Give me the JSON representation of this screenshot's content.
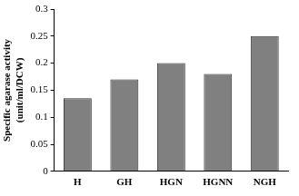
{
  "chart_data": {
    "type": "bar",
    "y_label": [
      "Specific agarase activity",
      "(unit/ml/DCW)"
    ],
    "categories": [
      "H",
      "GH",
      "HGN",
      "HGNN",
      "NGH"
    ],
    "values": [
      0.135,
      0.17,
      0.2,
      0.18,
      0.25
    ],
    "color": "#808080",
    "ylim": [
      0,
      0.3
    ],
    "yticks": [
      0,
      0.05,
      0.1,
      0.15,
      0.2,
      0.25,
      0.3
    ],
    "grid": false
  }
}
